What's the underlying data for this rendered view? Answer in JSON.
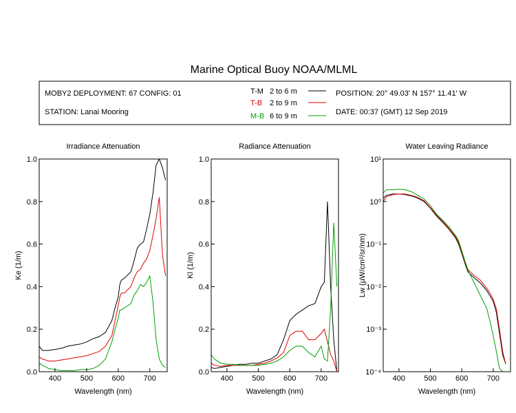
{
  "title": "Marine Optical Buoy NOAA/MLML",
  "info": {
    "deployment": "MOBY2 DEPLOYMENT: 67 CONFIG: 01",
    "station": "STATION: Lanai Mooring",
    "position": "POSITION: 20° 49.03' N   157° 11.41' W",
    "date": "DATE: 00:37 (GMT) 12 Sep 2019"
  },
  "legend": [
    {
      "code": "T-M",
      "range": "2 to 6  m",
      "color": "#000000"
    },
    {
      "code": "T-B",
      "range": "2 to 9  m",
      "color": "#e00000"
    },
    {
      "code": "M-B",
      "range": "6 to 9  m",
      "color": "#00a000"
    }
  ],
  "chart_data": [
    {
      "type": "line",
      "title": "Irradiance Attenuation",
      "xlabel": "Wavelength (nm)",
      "ylabel": "Ke  (1/m)",
      "xlim": [
        350,
        755
      ],
      "ylim": [
        0,
        1.0
      ],
      "xticks": [
        "400",
        "500",
        "600",
        "700"
      ],
      "yticks": [
        "0.0",
        "0.2",
        "0.4",
        "0.6",
        "0.8",
        "1.0"
      ],
      "x": [
        350,
        360,
        380,
        400,
        420,
        440,
        460,
        480,
        500,
        520,
        540,
        560,
        580,
        590,
        600,
        605,
        610,
        620,
        640,
        650,
        660,
        670,
        680,
        690,
        700,
        710,
        720,
        730,
        740,
        750
      ],
      "series": [
        {
          "name": "T-M",
          "color": "#000000",
          "values": [
            0.12,
            0.1,
            0.1,
            0.105,
            0.11,
            0.12,
            0.125,
            0.13,
            0.14,
            0.155,
            0.165,
            0.185,
            0.24,
            0.3,
            0.35,
            0.41,
            0.43,
            0.44,
            0.47,
            0.52,
            0.58,
            0.6,
            0.61,
            0.67,
            0.74,
            0.84,
            0.97,
            1.0,
            0.96,
            0.9
          ]
        },
        {
          "name": "T-B",
          "color": "#e00000",
          "values": [
            0.07,
            0.06,
            0.05,
            0.05,
            0.055,
            0.06,
            0.065,
            0.07,
            0.075,
            0.085,
            0.095,
            0.12,
            0.17,
            0.24,
            0.31,
            0.35,
            0.37,
            0.37,
            0.4,
            0.44,
            0.47,
            0.48,
            0.51,
            0.53,
            0.57,
            0.64,
            0.72,
            0.82,
            0.55,
            0.45
          ]
        },
        {
          "name": "M-B",
          "color": "#00a000",
          "values": [
            0.04,
            0.03,
            0.015,
            0.01,
            0.005,
            0.005,
            0.005,
            0.01,
            0.01,
            0.015,
            0.03,
            0.06,
            0.14,
            0.2,
            0.25,
            0.29,
            0.29,
            0.3,
            0.32,
            0.36,
            0.38,
            0.41,
            0.4,
            0.42,
            0.45,
            0.33,
            0.15,
            0.06,
            0.03,
            0.02
          ]
        }
      ]
    },
    {
      "type": "line",
      "title": "Radiance Attenuation",
      "xlabel": "Wavelength (nm)",
      "ylabel": "Kl  (1/m)",
      "xlim": [
        350,
        755
      ],
      "ylim": [
        0,
        1.0
      ],
      "xticks": [
        "400",
        "500",
        "600",
        "700"
      ],
      "yticks": [
        "0.0",
        "0.2",
        "0.4",
        "0.6",
        "0.8",
        "1.0"
      ],
      "x": [
        350,
        360,
        380,
        400,
        420,
        440,
        460,
        480,
        500,
        520,
        540,
        560,
        580,
        600,
        620,
        640,
        660,
        680,
        700,
        710,
        720,
        730,
        740,
        750
      ],
      "series": [
        {
          "name": "T-M",
          "color": "#000000",
          "values": [
            0.02,
            0.015,
            0.02,
            0.025,
            0.03,
            0.035,
            0.035,
            0.04,
            0.04,
            0.05,
            0.06,
            0.08,
            0.15,
            0.24,
            0.27,
            0.29,
            0.31,
            0.32,
            0.4,
            0.42,
            0.8,
            0.4,
            0.15,
            0.0
          ]
        },
        {
          "name": "T-B",
          "color": "#e00000",
          "values": [
            0.04,
            0.03,
            0.025,
            0.03,
            0.03,
            0.03,
            0.03,
            0.03,
            0.035,
            0.04,
            0.05,
            0.065,
            0.09,
            0.17,
            0.19,
            0.19,
            0.15,
            0.15,
            0.18,
            0.2,
            0.14,
            0.08,
            0.05,
            0.0
          ]
        },
        {
          "name": "M-B",
          "color": "#00a000",
          "values": [
            0.08,
            0.06,
            0.04,
            0.035,
            0.035,
            0.03,
            0.03,
            0.03,
            0.03,
            0.035,
            0.04,
            0.05,
            0.07,
            0.1,
            0.12,
            0.12,
            0.09,
            0.07,
            0.12,
            0.06,
            0.05,
            0.3,
            0.7,
            0.4
          ]
        }
      ]
    },
    {
      "type": "line",
      "title": "Water Leaving Radiance",
      "xlabel": "Wavelength (nm)",
      "ylabel": "Lw  (µW/cm²/sr/nm)",
      "yscale": "log",
      "xlim": [
        350,
        755
      ],
      "ylim": [
        0.0001,
        10
      ],
      "xticks": [
        "400",
        "500",
        "600",
        "700"
      ],
      "yticks": [
        "10⁻⁴",
        "10⁻³",
        "10⁻²",
        "10⁻¹",
        "10⁰",
        "10¹"
      ],
      "x": [
        350,
        360,
        380,
        400,
        420,
        440,
        460,
        480,
        500,
        520,
        540,
        560,
        580,
        590,
        600,
        610,
        620,
        640,
        660,
        680,
        690,
        700,
        710,
        720,
        730,
        740
      ],
      "series": [
        {
          "name": "T-M",
          "color": "#000000",
          "values": [
            1.2,
            1.4,
            1.5,
            1.5,
            1.45,
            1.35,
            1.2,
            1.0,
            0.7,
            0.45,
            0.32,
            0.22,
            0.14,
            0.1,
            0.06,
            0.035,
            0.022,
            0.016,
            0.012,
            0.008,
            0.006,
            0.0045,
            0.0025,
            0.0008,
            0.00025,
            0.00015
          ]
        },
        {
          "name": "T-B",
          "color": "#e00000",
          "values": [
            1.0,
            1.3,
            1.45,
            1.5,
            1.5,
            1.4,
            1.25,
            1.05,
            0.72,
            0.48,
            0.34,
            0.23,
            0.15,
            0.11,
            0.065,
            0.038,
            0.025,
            0.018,
            0.014,
            0.009,
            0.007,
            0.005,
            0.003,
            0.001,
            0.0003,
            0.00015
          ]
        },
        {
          "name": "M-B",
          "color": "#00a000",
          "values": [
            1.6,
            1.9,
            1.9,
            1.95,
            1.9,
            1.7,
            1.4,
            1.15,
            0.8,
            0.5,
            0.36,
            0.25,
            0.16,
            0.12,
            0.07,
            0.04,
            0.024,
            0.012,
            0.006,
            0.003,
            0.0015,
            0.0007,
            0.0003,
            0.00012,
            0.0001,
            0.0001
          ]
        }
      ]
    }
  ]
}
